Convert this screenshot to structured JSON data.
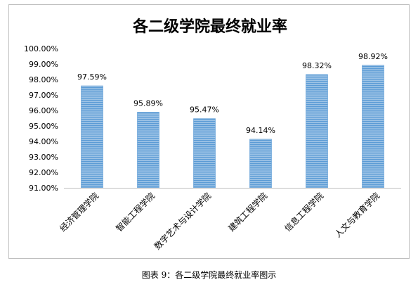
{
  "caption": "图表 9：各二级学院最终就业率图示",
  "chart_data": {
    "type": "bar",
    "title": "各二级学院最终就业率",
    "categories": [
      "经济管理学院",
      "智能工程学院",
      "数字艺术与设计学院",
      "建筑工程学院",
      "信息工程学院",
      "人文与教育学院"
    ],
    "values": [
      97.59,
      95.89,
      95.47,
      94.14,
      98.32,
      98.92
    ],
    "value_labels": [
      "97.59%",
      "95.89%",
      "95.47%",
      "94.14%",
      "98.32%",
      "98.92%"
    ],
    "ylim": [
      91,
      100
    ],
    "y_ticks": [
      "91.00%",
      "92.00%",
      "93.00%",
      "94.00%",
      "95.00%",
      "96.00%",
      "97.00%",
      "98.00%",
      "99.00%",
      "100.00%"
    ],
    "xlabel": "",
    "ylabel": "",
    "grid": false,
    "legend": "none",
    "bar_color": "#9dc3e6",
    "bar_stripe_color": "#5b9bd5"
  }
}
